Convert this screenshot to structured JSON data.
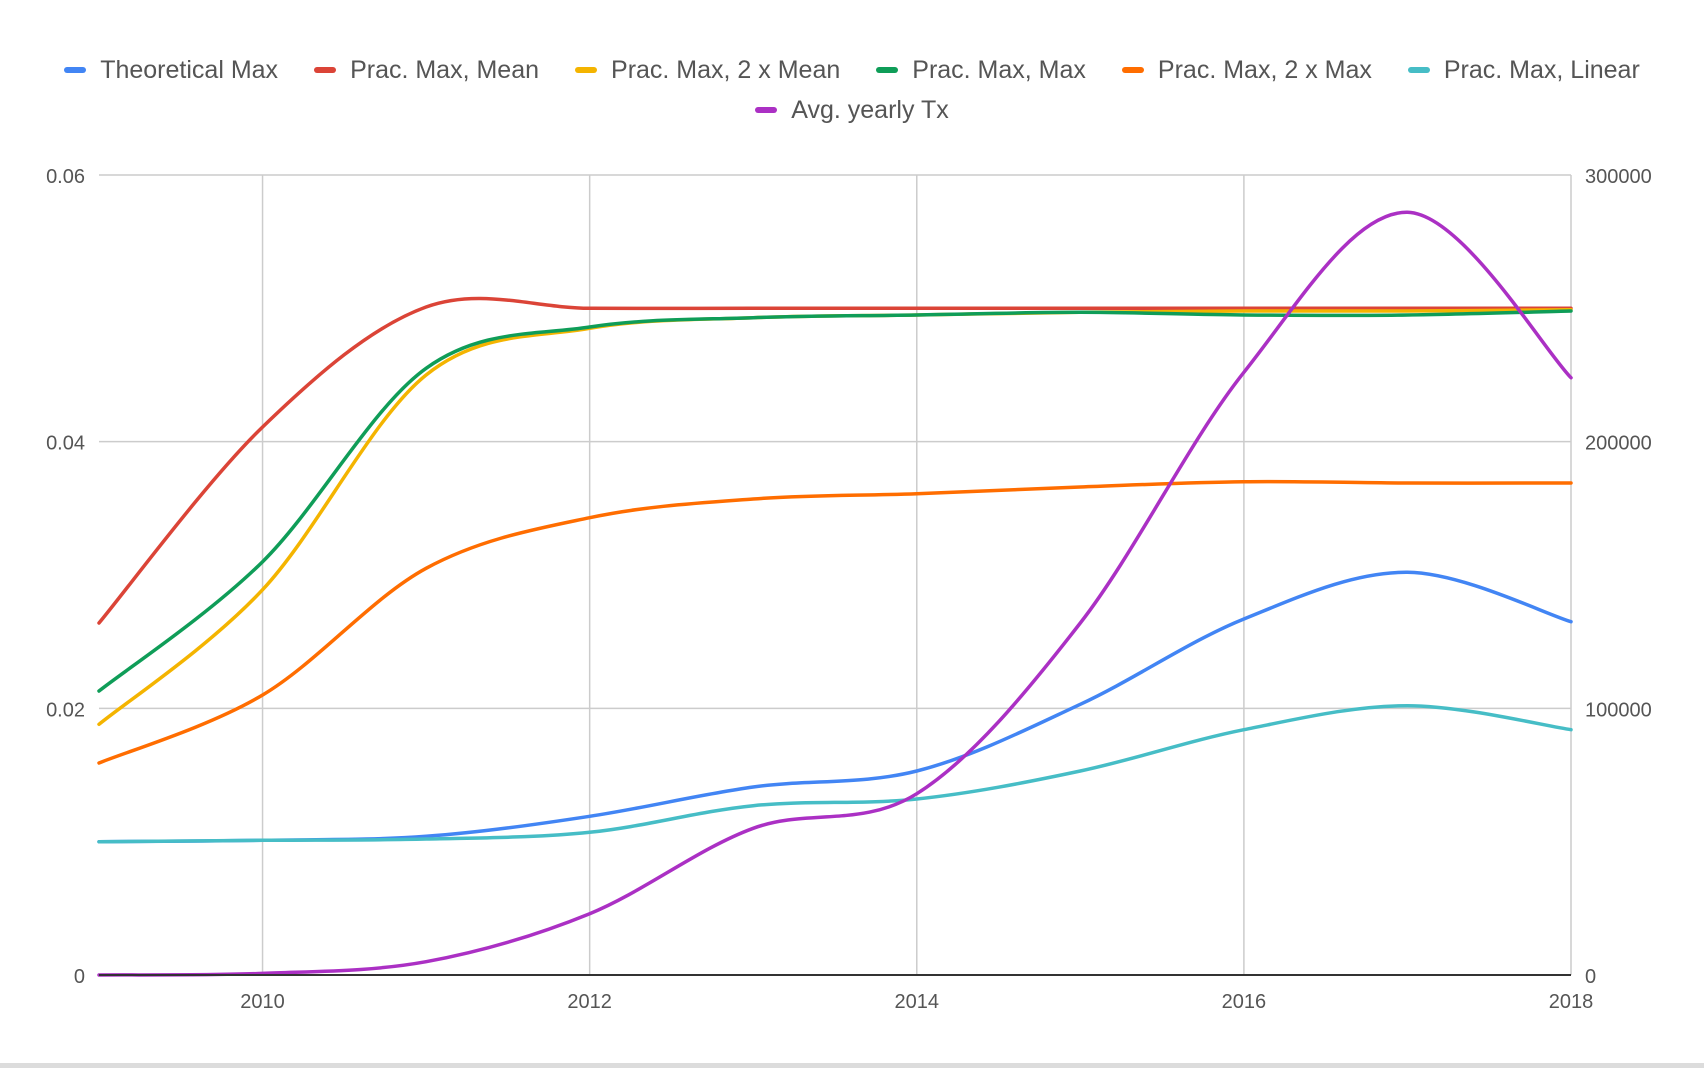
{
  "chart_data": {
    "type": "line",
    "title": "",
    "xlabel": "",
    "ylabel": "",
    "y2label": "",
    "x_ticks": [
      "2010",
      "2012",
      "2014",
      "2016",
      "2018"
    ],
    "y_ticks": [
      "0",
      "0.02",
      "0.04",
      "0.06"
    ],
    "y2_ticks": [
      "0",
      "100000",
      "200000",
      "300000"
    ],
    "xlim": [
      2009,
      2018
    ],
    "ylim": [
      0,
      0.06
    ],
    "y2lim": [
      0,
      300000
    ],
    "grid": true,
    "legend_position": "top",
    "x": [
      2009,
      2010,
      2011,
      2012,
      2013,
      2014,
      2015,
      2016,
      2017,
      2018
    ],
    "series": [
      {
        "name": "Theoretical Max",
        "color": "#4285f4",
        "axis": "left",
        "values": [
          0.01,
          0.0101,
          0.0104,
          0.0119,
          0.0141,
          0.0153,
          0.0203,
          0.0267,
          0.0302,
          0.0265
        ]
      },
      {
        "name": "Prac. Max, Mean",
        "color": "#db4437",
        "axis": "left",
        "values": [
          0.0264,
          0.0411,
          0.0501,
          0.05,
          0.05,
          0.05,
          0.05,
          0.05,
          0.05,
          0.05
        ]
      },
      {
        "name": "Prac. Max, 2 x Mean",
        "color": "#f4b400",
        "axis": "left",
        "values": [
          0.0188,
          0.0289,
          0.045,
          0.0485,
          0.0493,
          0.0495,
          0.0497,
          0.0498,
          0.0498,
          0.0499
        ]
      },
      {
        "name": "Prac. Max, Max",
        "color": "#0f9d58",
        "axis": "left",
        "values": [
          0.0213,
          0.031,
          0.0455,
          0.0486,
          0.0493,
          0.0495,
          0.0497,
          0.0495,
          0.0495,
          0.0498
        ]
      },
      {
        "name": "Prac. Max, 2 x Max",
        "color": "#ff6d00",
        "axis": "left",
        "values": [
          0.0159,
          0.021,
          0.0305,
          0.0343,
          0.0357,
          0.0361,
          0.0366,
          0.037,
          0.0369,
          0.0369
        ]
      },
      {
        "name": "Prac. Max, Linear",
        "color": "#46bdc6",
        "axis": "left",
        "values": [
          0.01,
          0.0101,
          0.0102,
          0.0107,
          0.0127,
          0.0132,
          0.0153,
          0.0184,
          0.0202,
          0.0184
        ]
      },
      {
        "name": "Avg. yearly Tx",
        "color": "#ab30c4",
        "axis": "right",
        "values": [
          0,
          600,
          5000,
          23000,
          55000,
          68000,
          132000,
          226000,
          286000,
          224000
        ]
      }
    ]
  }
}
